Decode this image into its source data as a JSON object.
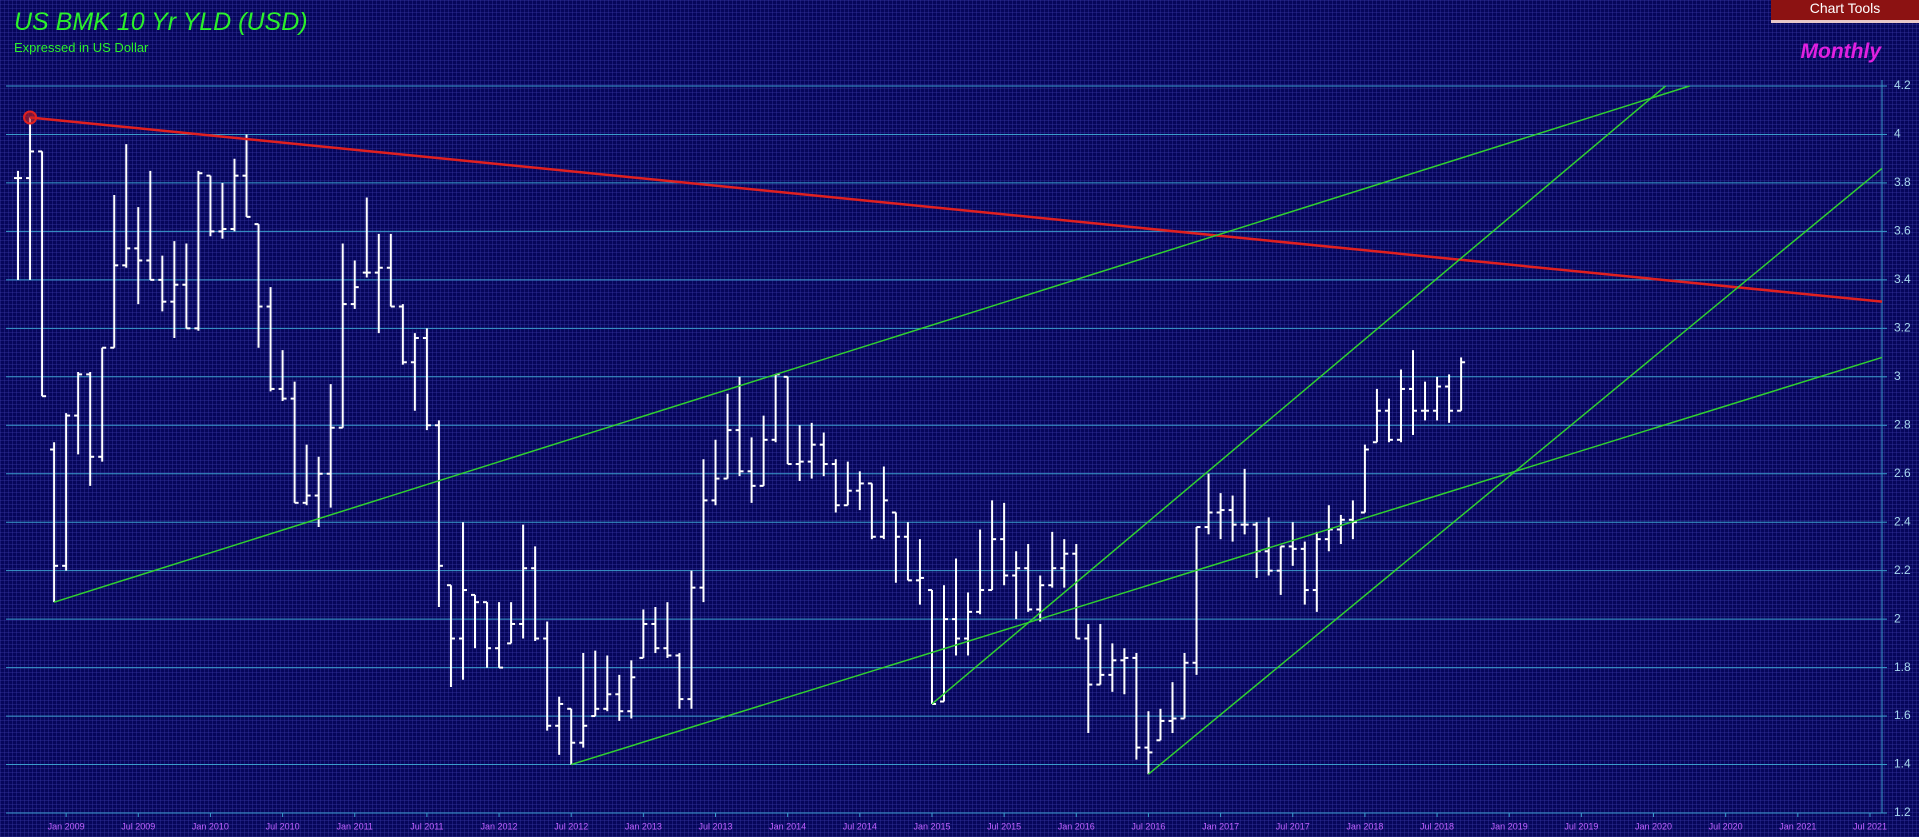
{
  "toolbar": {
    "button": "Chart Tools",
    "period": "Monthly"
  },
  "chart_data": {
    "type": "ohlc",
    "title": "US BMK 10 Yr YLD (USD)",
    "subtitle": "Expressed in US Dollar",
    "color": "#ffffff",
    "grid": true,
    "ylim": [
      1.2,
      4.2
    ],
    "yticks": [
      1.2,
      1.4,
      1.6,
      1.8,
      2,
      2.2,
      2.4,
      2.6,
      2.8,
      3,
      3.2,
      3.4,
      3.6,
      3.8,
      4,
      4.2
    ],
    "xlim": [
      "Aug 2008",
      "Aug 2021"
    ],
    "xticks": [
      "Jan 2009",
      "Jul 2009",
      "Jan 2010",
      "Jul 2010",
      "Jan 2011",
      "Jul 2011",
      "Jan 2012",
      "Jul 2012",
      "Jan 2013",
      "Jul 2013",
      "Jan 2014",
      "Jul 2014",
      "Jan 2015",
      "Jul 2015",
      "Jan 2016",
      "Jul 2016",
      "Jan 2017",
      "Jul 2017",
      "Jan 2018",
      "Jul 2018",
      "Jan 2019",
      "Jul 2019",
      "Jan 2020",
      "Jul 2020",
      "Jan 2021",
      "Jul 2021"
    ],
    "x": [
      "Sep 2008",
      "Oct 2008",
      "Nov 2008",
      "Dec 2008",
      "Jan 2009",
      "Feb 2009",
      "Mar 2009",
      "Apr 2009",
      "May 2009",
      "Jun 2009",
      "Jul 2009",
      "Aug 2009",
      "Sep 2009",
      "Oct 2009",
      "Nov 2009",
      "Dec 2009",
      "Jan 2010",
      "Feb 2010",
      "Mar 2010",
      "Apr 2010",
      "May 2010",
      "Jun 2010",
      "Jul 2010",
      "Aug 2010",
      "Sep 2010",
      "Oct 2010",
      "Nov 2010",
      "Dec 2010",
      "Jan 2011",
      "Feb 2011",
      "Mar 2011",
      "Apr 2011",
      "May 2011",
      "Jun 2011",
      "Jul 2011",
      "Aug 2011",
      "Sep 2011",
      "Oct 2011",
      "Nov 2011",
      "Dec 2011",
      "Jan 2012",
      "Feb 2012",
      "Mar 2012",
      "Apr 2012",
      "May 2012",
      "Jun 2012",
      "Jul 2012",
      "Aug 2012",
      "Sep 2012",
      "Oct 2012",
      "Nov 2012",
      "Dec 2012",
      "Jan 2013",
      "Feb 2013",
      "Mar 2013",
      "Apr 2013",
      "May 2013",
      "Jun 2013",
      "Jul 2013",
      "Aug 2013",
      "Sep 2013",
      "Oct 2013",
      "Nov 2013",
      "Dec 2013",
      "Jan 2014",
      "Feb 2014",
      "Mar 2014",
      "Apr 2014",
      "May 2014",
      "Jun 2014",
      "Jul 2014",
      "Aug 2014",
      "Sep 2014",
      "Oct 2014",
      "Nov 2014",
      "Dec 2014",
      "Jan 2015",
      "Feb 2015",
      "Mar 2015",
      "Apr 2015",
      "May 2015",
      "Jun 2015",
      "Jul 2015",
      "Aug 2015",
      "Sep 2015",
      "Oct 2015",
      "Nov 2015",
      "Dec 2015",
      "Jan 2016",
      "Feb 2016",
      "Mar 2016",
      "Apr 2016",
      "May 2016",
      "Jun 2016",
      "Jul 2016",
      "Aug 2016",
      "Sep 2016",
      "Oct 2016",
      "Nov 2016",
      "Dec 2016",
      "Jan 2017",
      "Feb 2017",
      "Mar 2017",
      "Apr 2017",
      "May 2017",
      "Jun 2017",
      "Jul 2017",
      "Aug 2017",
      "Sep 2017",
      "Oct 2017",
      "Nov 2017",
      "Dec 2017",
      "Jan 2018",
      "Feb 2018",
      "Mar 2018",
      "Apr 2018",
      "May 2018",
      "Jun 2018",
      "Jul 2018",
      "Aug 2018",
      "Sep 2018"
    ],
    "ohlc": [
      [
        3.82,
        3.85,
        3.4,
        3.82
      ],
      [
        3.82,
        4.07,
        3.4,
        3.93
      ],
      [
        3.93,
        3.93,
        2.92,
        2.92
      ],
      [
        2.7,
        2.73,
        2.07,
        2.22
      ],
      [
        2.22,
        2.85,
        2.2,
        2.84
      ],
      [
        2.84,
        3.02,
        2.68,
        3.01
      ],
      [
        3.01,
        3.02,
        2.55,
        2.67
      ],
      [
        2.67,
        3.12,
        2.65,
        3.12
      ],
      [
        3.12,
        3.75,
        3.12,
        3.46
      ],
      [
        3.46,
        3.96,
        3.45,
        3.53
      ],
      [
        3.53,
        3.7,
        3.3,
        3.48
      ],
      [
        3.48,
        3.85,
        3.4,
        3.4
      ],
      [
        3.4,
        3.5,
        3.27,
        3.31
      ],
      [
        3.31,
        3.56,
        3.16,
        3.38
      ],
      [
        3.38,
        3.55,
        3.2,
        3.2
      ],
      [
        3.2,
        3.85,
        3.19,
        3.84
      ],
      [
        3.83,
        3.83,
        3.58,
        3.6
      ],
      [
        3.6,
        3.8,
        3.57,
        3.61
      ],
      [
        3.61,
        3.9,
        3.6,
        3.83
      ],
      [
        3.83,
        4.0,
        3.66,
        3.66
      ],
      [
        3.63,
        3.63,
        3.12,
        3.29
      ],
      [
        3.29,
        3.37,
        2.94,
        2.95
      ],
      [
        2.95,
        3.11,
        2.9,
        2.91
      ],
      [
        2.91,
        2.98,
        2.48,
        2.48
      ],
      [
        2.48,
        2.72,
        2.47,
        2.51
      ],
      [
        2.51,
        2.67,
        2.38,
        2.6
      ],
      [
        2.6,
        2.97,
        2.46,
        2.79
      ],
      [
        2.79,
        3.55,
        2.79,
        3.3
      ],
      [
        3.3,
        3.48,
        3.28,
        3.37
      ],
      [
        3.43,
        3.74,
        3.41,
        3.43
      ],
      [
        3.43,
        3.59,
        3.18,
        3.45
      ],
      [
        3.45,
        3.59,
        3.29,
        3.29
      ],
      [
        3.29,
        3.3,
        3.05,
        3.06
      ],
      [
        3.06,
        3.18,
        2.86,
        3.16
      ],
      [
        3.16,
        3.2,
        2.78,
        2.8
      ],
      [
        2.8,
        2.82,
        2.05,
        2.22
      ],
      [
        2.14,
        2.14,
        1.72,
        1.92
      ],
      [
        1.92,
        2.4,
        1.75,
        2.12
      ],
      [
        2.1,
        2.1,
        1.88,
        2.07
      ],
      [
        2.07,
        2.07,
        1.8,
        1.88
      ],
      [
        1.88,
        2.07,
        1.8,
        1.8
      ],
      [
        1.9,
        2.07,
        1.9,
        1.98
      ],
      [
        1.98,
        2.39,
        1.92,
        2.21
      ],
      [
        2.21,
        2.3,
        1.91,
        1.92
      ],
      [
        1.92,
        1.99,
        1.54,
        1.56
      ],
      [
        1.56,
        1.68,
        1.44,
        1.65
      ],
      [
        1.63,
        1.63,
        1.4,
        1.49
      ],
      [
        1.49,
        1.86,
        1.47,
        1.56
      ],
      [
        1.6,
        1.87,
        1.6,
        1.63
      ],
      [
        1.63,
        1.85,
        1.62,
        1.69
      ],
      [
        1.69,
        1.77,
        1.58,
        1.62
      ],
      [
        1.62,
        1.83,
        1.59,
        1.76
      ],
      [
        1.84,
        2.04,
        1.84,
        1.98
      ],
      [
        1.98,
        2.05,
        1.86,
        1.88
      ],
      [
        1.88,
        2.07,
        1.84,
        1.85
      ],
      [
        1.85,
        1.86,
        1.63,
        1.67
      ],
      [
        1.67,
        2.2,
        1.63,
        2.13
      ],
      [
        2.13,
        2.66,
        2.07,
        2.49
      ],
      [
        2.49,
        2.74,
        2.47,
        2.58
      ],
      [
        2.58,
        2.93,
        2.58,
        2.78
      ],
      [
        2.78,
        3.0,
        2.59,
        2.61
      ],
      [
        2.61,
        2.75,
        2.48,
        2.55
      ],
      [
        2.55,
        2.84,
        2.55,
        2.74
      ],
      [
        2.74,
        3.01,
        2.73,
        3.01
      ],
      [
        3.0,
        3.0,
        2.64,
        2.64
      ],
      [
        2.64,
        2.8,
        2.57,
        2.65
      ],
      [
        2.65,
        2.81,
        2.58,
        2.72
      ],
      [
        2.72,
        2.77,
        2.59,
        2.64
      ],
      [
        2.64,
        2.66,
        2.44,
        2.47
      ],
      [
        2.47,
        2.65,
        2.47,
        2.53
      ],
      [
        2.53,
        2.61,
        2.45,
        2.56
      ],
      [
        2.56,
        2.56,
        2.33,
        2.34
      ],
      [
        2.34,
        2.63,
        2.33,
        2.49
      ],
      [
        2.44,
        2.44,
        2.15,
        2.34
      ],
      [
        2.34,
        2.4,
        2.16,
        2.16
      ],
      [
        2.16,
        2.33,
        2.06,
        2.17
      ],
      [
        2.12,
        2.12,
        1.65,
        1.65
      ],
      [
        1.66,
        2.14,
        1.66,
        2.0
      ],
      [
        2.0,
        2.25,
        1.85,
        1.92
      ],
      [
        1.92,
        2.11,
        1.85,
        2.03
      ],
      [
        2.03,
        2.37,
        2.02,
        2.12
      ],
      [
        2.12,
        2.49,
        2.12,
        2.33
      ],
      [
        2.33,
        2.48,
        2.14,
        2.18
      ],
      [
        2.18,
        2.28,
        2.0,
        2.21
      ],
      [
        2.21,
        2.31,
        2.03,
        2.04
      ],
      [
        2.04,
        2.18,
        1.99,
        2.14
      ],
      [
        2.14,
        2.36,
        2.13,
        2.21
      ],
      [
        2.21,
        2.33,
        2.13,
        2.27
      ],
      [
        2.27,
        2.31,
        1.92,
        1.92
      ],
      [
        1.92,
        1.98,
        1.53,
        1.73
      ],
      [
        1.73,
        1.98,
        1.73,
        1.77
      ],
      [
        1.77,
        1.9,
        1.7,
        1.83
      ],
      [
        1.83,
        1.88,
        1.69,
        1.84
      ],
      [
        1.84,
        1.86,
        1.42,
        1.47
      ],
      [
        1.47,
        1.62,
        1.36,
        1.45
      ],
      [
        1.5,
        1.63,
        1.5,
        1.58
      ],
      [
        1.58,
        1.74,
        1.53,
        1.59
      ],
      [
        1.59,
        1.86,
        1.59,
        1.82
      ],
      [
        1.82,
        2.38,
        1.77,
        2.38
      ],
      [
        2.38,
        2.6,
        2.35,
        2.44
      ],
      [
        2.44,
        2.52,
        2.33,
        2.45
      ],
      [
        2.45,
        2.51,
        2.32,
        2.39
      ],
      [
        2.39,
        2.62,
        2.35,
        2.39
      ],
      [
        2.39,
        2.4,
        2.17,
        2.28
      ],
      [
        2.28,
        2.42,
        2.18,
        2.2
      ],
      [
        2.2,
        2.3,
        2.1,
        2.3
      ],
      [
        2.3,
        2.4,
        2.22,
        2.29
      ],
      [
        2.29,
        2.32,
        2.06,
        2.12
      ],
      [
        2.12,
        2.36,
        2.03,
        2.33
      ],
      [
        2.33,
        2.47,
        2.28,
        2.37
      ],
      [
        2.37,
        2.43,
        2.31,
        2.41
      ],
      [
        2.41,
        2.49,
        2.33,
        2.4
      ],
      [
        2.44,
        2.72,
        2.44,
        2.7
      ],
      [
        2.73,
        2.95,
        2.73,
        2.86
      ],
      [
        2.86,
        2.91,
        2.73,
        2.74
      ],
      [
        2.74,
        3.03,
        2.73,
        2.95
      ],
      [
        2.95,
        3.11,
        2.76,
        2.86
      ],
      [
        2.86,
        2.98,
        2.82,
        2.86
      ],
      [
        2.86,
        3.0,
        2.82,
        2.96
      ],
      [
        2.96,
        3.01,
        2.81,
        2.86
      ],
      [
        2.86,
        3.08,
        2.86,
        3.06
      ]
    ],
    "trendlines": [
      {
        "color": "#e02020",
        "x": [
          "Oct 2008",
          "Aug 2021"
        ],
        "y": [
          4.07,
          3.31
        ],
        "start_marker": true
      },
      {
        "color": "#30d030",
        "x": [
          "Dec 2008",
          "Apr 2020"
        ],
        "y": [
          2.07,
          4.2
        ]
      },
      {
        "color": "#30d030",
        "x": [
          "Jul 2012",
          "Aug 2021"
        ],
        "y": [
          1.4,
          3.08
        ]
      },
      {
        "color": "#30d030",
        "x": [
          "Jan 2015",
          "Feb 2020"
        ],
        "y": [
          1.65,
          4.2
        ]
      },
      {
        "color": "#30d030",
        "x": [
          "Jul 2016",
          "Aug 2021"
        ],
        "y": [
          1.36,
          3.86
        ]
      }
    ]
  }
}
